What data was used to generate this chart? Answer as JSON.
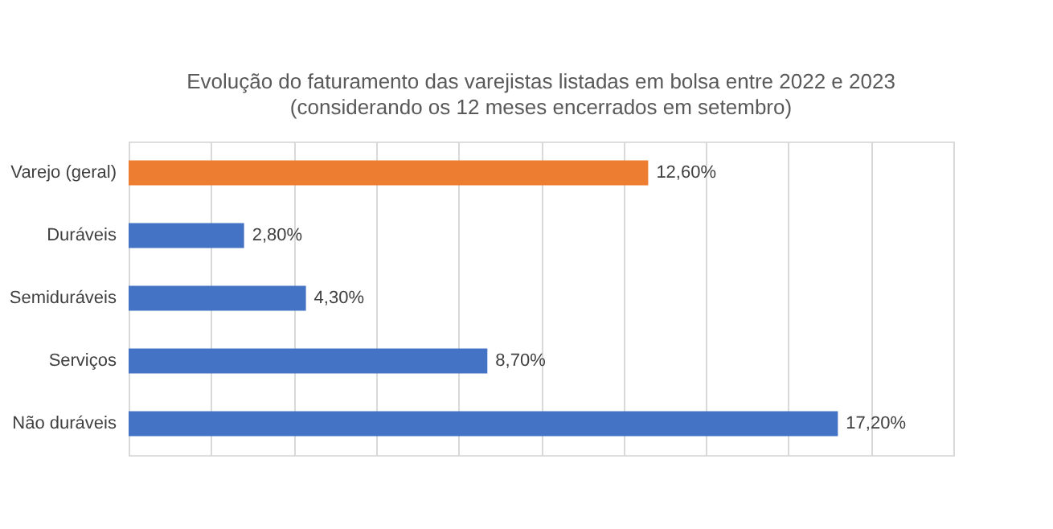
{
  "chart_data": {
    "type": "bar",
    "orientation": "horizontal",
    "title": "Evolução do faturamento das varejistas listadas em bolsa entre 2022 e 2023",
    "subtitle": "(considerando os 12 meses encerrados em setembro)",
    "categories": [
      "Varejo (geral)",
      "Duráveis",
      "Semiduráveis",
      "Serviços",
      "Não duráveis"
    ],
    "values": [
      12.6,
      2.8,
      4.3,
      8.7,
      17.2
    ],
    "colors": [
      "#ed7d31",
      "#4472c4",
      "#4472c4",
      "#4472c4",
      "#4472c4"
    ],
    "value_labels": [
      "12,60%",
      "2,80%",
      "4,30%",
      "8,70%",
      "17,20%"
    ],
    "xlim": [
      0,
      20
    ],
    "xticks": [
      {
        "value": 0,
        "label": null
      },
      {
        "value": 2,
        "label": null
      },
      {
        "value": 4,
        "label": null
      },
      {
        "value": 6,
        "label": null
      },
      {
        "value": 8,
        "label": null
      },
      {
        "value": 10,
        "label": null
      },
      {
        "value": 12,
        "label": null
      },
      {
        "value": 14,
        "label": null
      },
      {
        "value": 16,
        "label": null
      },
      {
        "value": 18,
        "label": null
      },
      {
        "value": 20,
        "label": null
      }
    ],
    "grid": "x",
    "tick_labels": "y"
  }
}
